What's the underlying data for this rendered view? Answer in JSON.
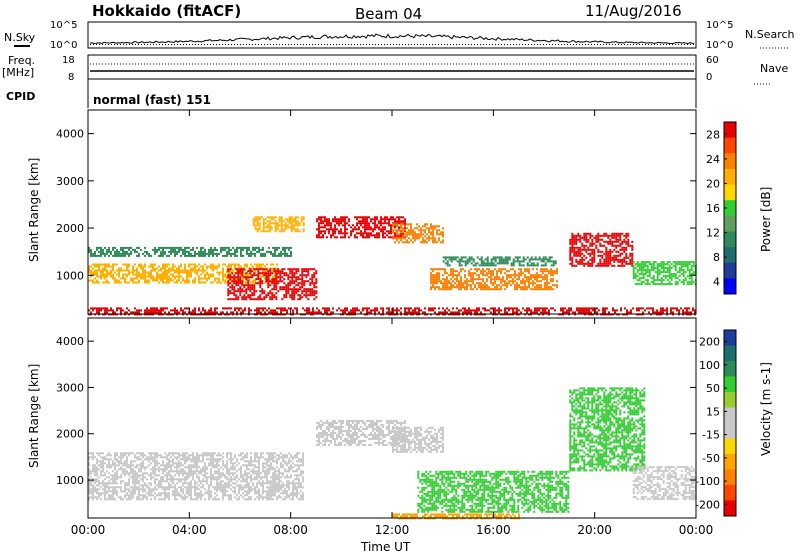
{
  "header": {
    "station": "Hokkaido (fitACF)",
    "beam": "Beam 04",
    "date": "11/Aug/2016"
  },
  "panels": {
    "nsky": {
      "label": "N.Sky",
      "right_label": "N.Search",
      "left_ticks": [
        "10^5",
        "10^0"
      ],
      "right_ticks": [
        "10^5",
        "10^0"
      ]
    },
    "freq": {
      "label_line1": "Freq.",
      "label_line2": "[MHz]",
      "right_label": "Nave",
      "left_ticks": [
        "18",
        "8"
      ],
      "right_ticks": [
        "60",
        "0"
      ]
    },
    "cpid": {
      "label": "CPID",
      "value": "normal (fast) 151"
    }
  },
  "chart_data": [
    {
      "type": "heatmap",
      "name": "power",
      "title": "",
      "xlabel": "",
      "ylabel": "Slant Range [km]",
      "xlim": [
        0,
        24
      ],
      "ylim": [
        180,
        4500
      ],
      "x_ticks": [
        0,
        4,
        8,
        12,
        16,
        20,
        24
      ],
      "y_ticks": [
        1000,
        2000,
        3000,
        4000
      ],
      "colorbar": {
        "label": "Power [dB]",
        "ticks": [
          "28",
          "24",
          "20",
          "16",
          "12",
          "8",
          "4"
        ],
        "colors": [
          "#e60000",
          "#ff4500",
          "#ff7f00",
          "#ffb000",
          "#ffd700",
          "#32cd32",
          "#5f9f5f",
          "#2e8b57",
          "#1e6e6e",
          "#1f3c9a",
          "#0000ff"
        ]
      },
      "echo_regions": [
        {
          "t": [
            0.0,
            24.0
          ],
          "r": [
            180,
            320
          ],
          "level": "28"
        },
        {
          "t": [
            0.0,
            7.5
          ],
          "r": [
            850,
            1250
          ],
          "level": "20"
        },
        {
          "t": [
            0.0,
            8.0
          ],
          "r": [
            1400,
            1600
          ],
          "level": "12"
        },
        {
          "t": [
            5.5,
            9.0
          ],
          "r": [
            500,
            1150
          ],
          "level": "28"
        },
        {
          "t": [
            6.5,
            8.5
          ],
          "r": [
            1950,
            2250
          ],
          "level": "20"
        },
        {
          "t": [
            9.0,
            12.5
          ],
          "r": [
            1800,
            2250
          ],
          "level": "28"
        },
        {
          "t": [
            12.0,
            14.0
          ],
          "r": [
            1700,
            2100
          ],
          "level": "24"
        },
        {
          "t": [
            13.5,
            18.5
          ],
          "r": [
            700,
            1150
          ],
          "level": "24"
        },
        {
          "t": [
            14.0,
            18.5
          ],
          "r": [
            1200,
            1400
          ],
          "level": "12"
        },
        {
          "t": [
            19.0,
            21.5
          ],
          "r": [
            1200,
            1900
          ],
          "level": "28"
        },
        {
          "t": [
            21.5,
            24.0
          ],
          "r": [
            800,
            1300
          ],
          "level": "16"
        }
      ]
    },
    {
      "type": "heatmap",
      "name": "velocity",
      "title": "",
      "xlabel": "Time UT",
      "ylabel": "Slant Range [km]",
      "xlim": [
        0,
        24
      ],
      "ylim": [
        180,
        4500
      ],
      "x_ticks": [
        0,
        4,
        8,
        12,
        16,
        20,
        24
      ],
      "x_tick_labels": [
        "00:00",
        "04:00",
        "08:00",
        "12:00",
        "16:00",
        "20:00",
        "00:00"
      ],
      "y_ticks": [
        1000,
        2000,
        3000,
        4000
      ],
      "colorbar": {
        "label": "Velocity [m s-1]",
        "ticks": [
          "200",
          "100",
          "50",
          "15",
          "-15",
          "-50",
          "-100",
          "-200"
        ],
        "colors": [
          "#1f3c9a",
          "#1e6e6e",
          "#2e8b57",
          "#32cd32",
          "#9acd32",
          "#c8c8c8",
          "#c8c8c8",
          "#ffd700",
          "#ffa500",
          "#ff7f00",
          "#ff4500",
          "#e60000"
        ]
      },
      "echo_regions": [
        {
          "t": [
            0.0,
            8.5
          ],
          "r": [
            600,
            1600
          ],
          "level": "0"
        },
        {
          "t": [
            9.0,
            12.5
          ],
          "r": [
            1750,
            2300
          ],
          "level": "0"
        },
        {
          "t": [
            12.0,
            14.0
          ],
          "r": [
            1600,
            2150
          ],
          "level": "0"
        },
        {
          "t": [
            13.0,
            19.0
          ],
          "r": [
            300,
            1200
          ],
          "level": "50"
        },
        {
          "t": [
            12.0,
            17.0
          ],
          "r": [
            180,
            280
          ],
          "level": "-50"
        },
        {
          "t": [
            19.0,
            22.0
          ],
          "r": [
            1200,
            3000
          ],
          "level": "50"
        },
        {
          "t": [
            21.5,
            24.0
          ],
          "r": [
            600,
            1300
          ],
          "level": "0"
        }
      ]
    }
  ]
}
